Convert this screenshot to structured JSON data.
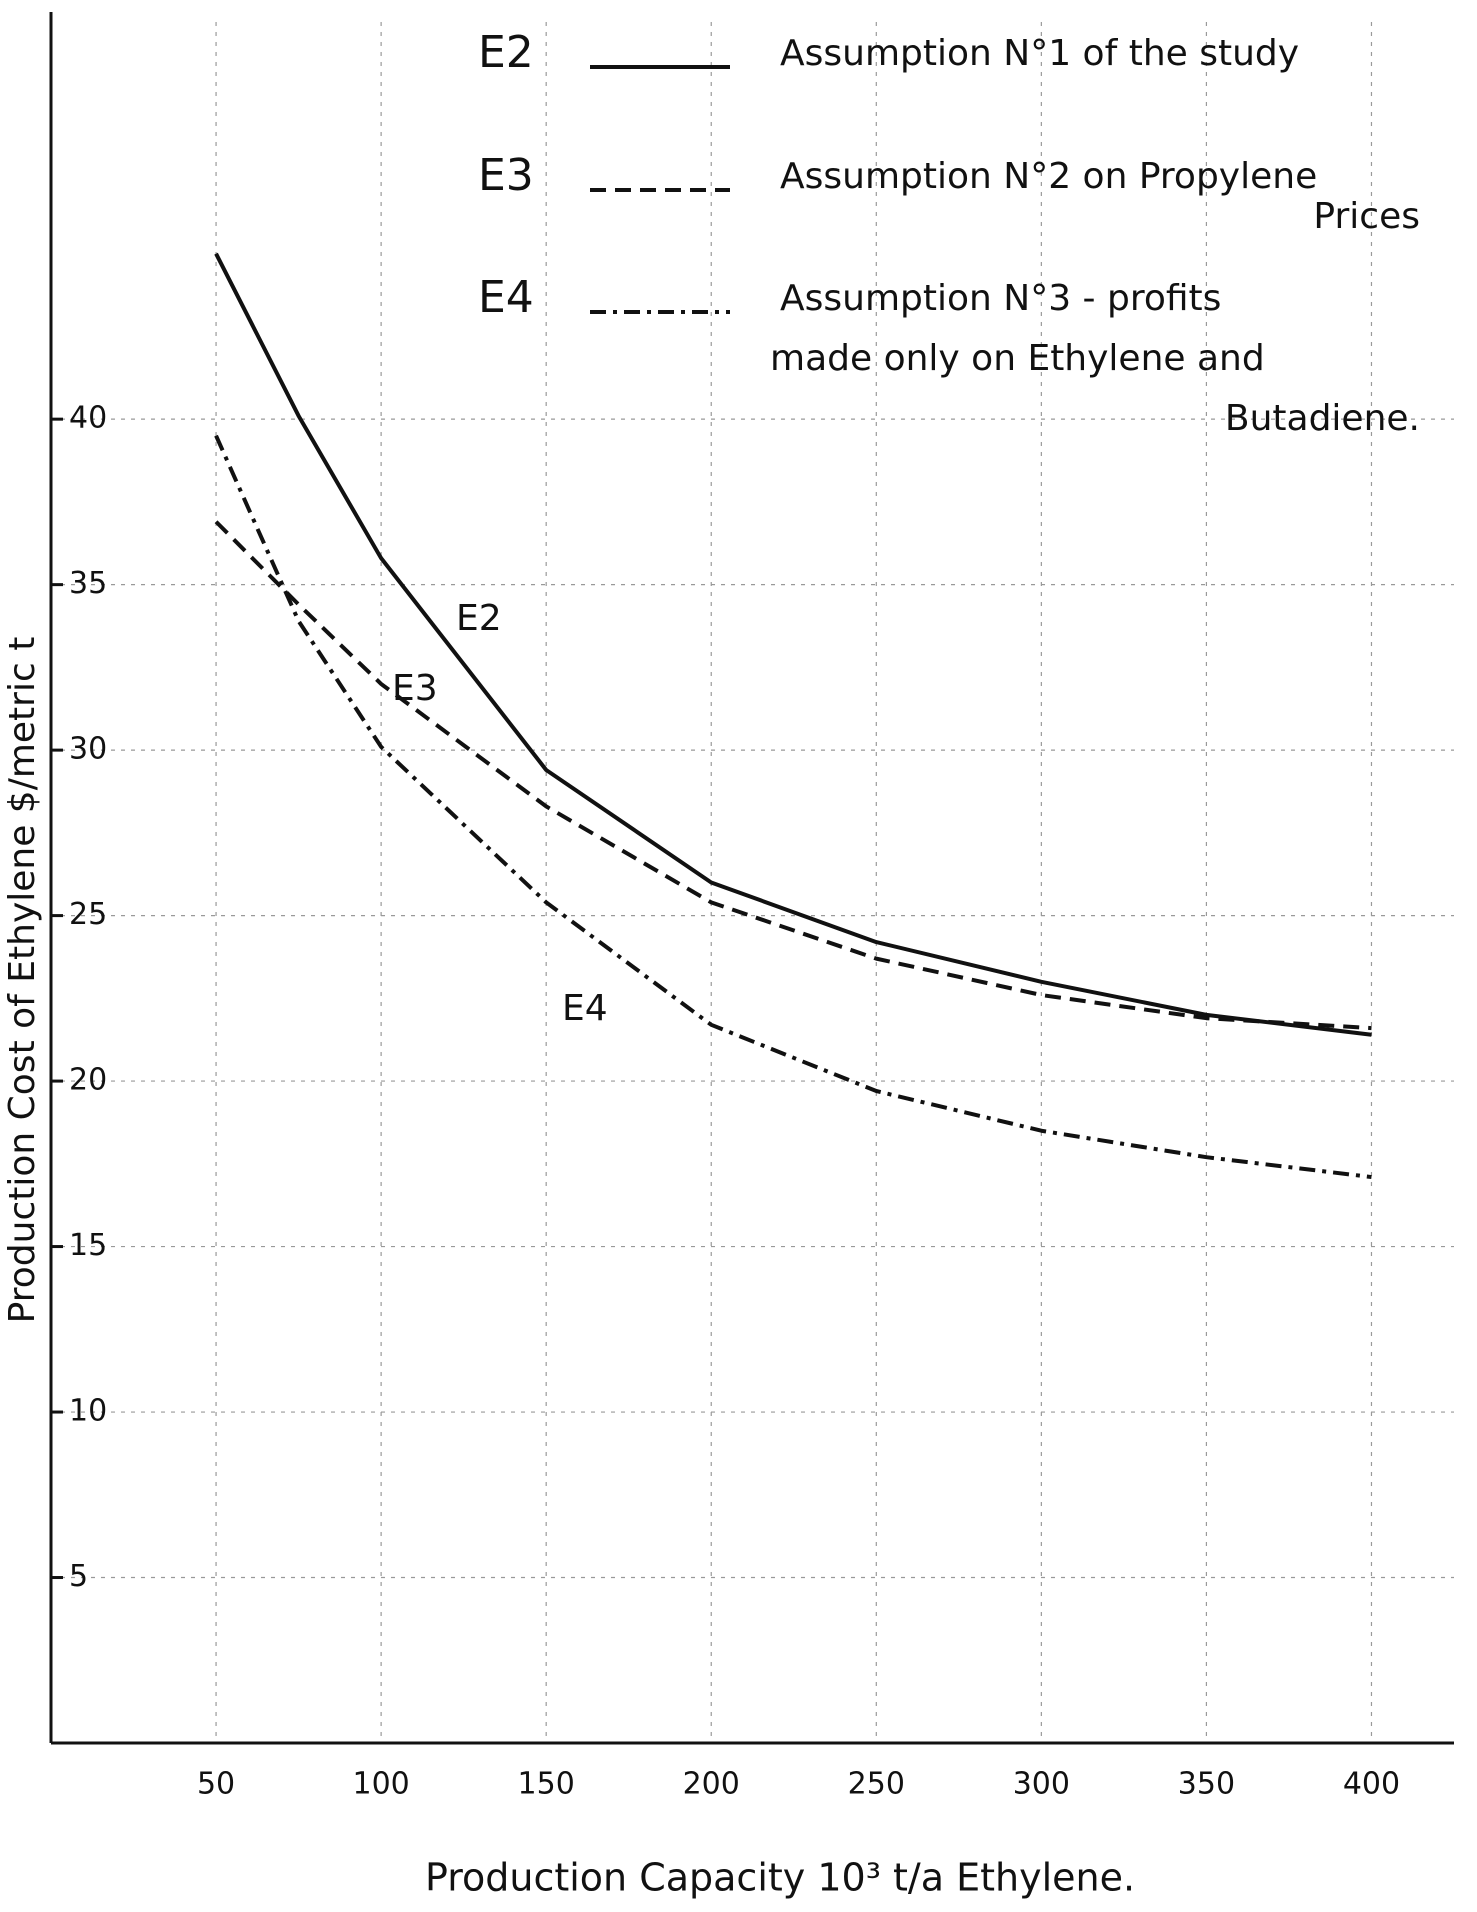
{
  "chart_data": {
    "type": "line",
    "x_label": "Production Capacity 10³ t/a Ethylene.",
    "y_label": "Production Cost of Ethylene $/metric t",
    "x": [
      50,
      75,
      100,
      150,
      200,
      250,
      300,
      350,
      400
    ],
    "series": [
      {
        "name": "E2",
        "color": "#111111",
        "style": "solid",
        "description": [
          "Assumption N°1 of the study"
        ],
        "values": [
          45,
          40.1,
          35.8,
          29.4,
          26,
          24.2,
          23,
          22,
          21.4
        ]
      },
      {
        "name": "E3",
        "color": "#111111",
        "style": "dashed",
        "description": [
          "Assumption N°2 on Propylene",
          "Prices"
        ],
        "values": [
          36.9,
          34.4,
          32,
          28.3,
          25.4,
          23.7,
          22.6,
          21.9,
          21.6
        ]
      },
      {
        "name": "E4",
        "color": "#111111",
        "style": "dashdot",
        "description": [
          "Assumption N°3 - profits",
          "made only on Ethylene and",
          "Butadiene."
        ],
        "values": [
          39.5,
          33.9,
          30.1,
          25.4,
          21.7,
          19.7,
          18.5,
          17.7,
          17.1
        ]
      }
    ],
    "xlim": [
      0,
      425
    ],
    "ylim": [
      0,
      52
    ],
    "xticks": [
      50,
      100,
      150,
      200,
      250,
      300,
      350,
      400
    ],
    "yticks": [
      5,
      10,
      15,
      20,
      25,
      30,
      35,
      40
    ],
    "grid": true
  }
}
